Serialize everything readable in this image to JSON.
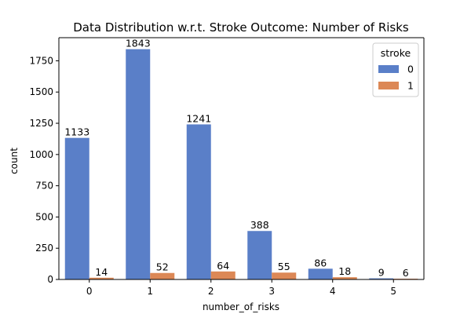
{
  "chart_data": {
    "type": "bar",
    "title": "Data Distribution w.r.t. Stroke Outcome: Number of Risks",
    "xlabel": "number_of_risks",
    "ylabel": "count",
    "categories": [
      "0",
      "1",
      "2",
      "3",
      "4",
      "5"
    ],
    "series": [
      {
        "name": "0",
        "values": [
          1133,
          1843,
          1241,
          388,
          86,
          9
        ],
        "color": "#5a7fc8"
      },
      {
        "name": "1",
        "values": [
          14,
          52,
          64,
          55,
          18,
          6
        ],
        "color": "#dc8856"
      }
    ],
    "ylim": [
      0,
      1935
    ],
    "yticks": [
      0,
      250,
      500,
      750,
      1000,
      1250,
      1500,
      1750
    ],
    "grid": false,
    "legend": {
      "title": "stroke",
      "placement": "top-right"
    }
  }
}
